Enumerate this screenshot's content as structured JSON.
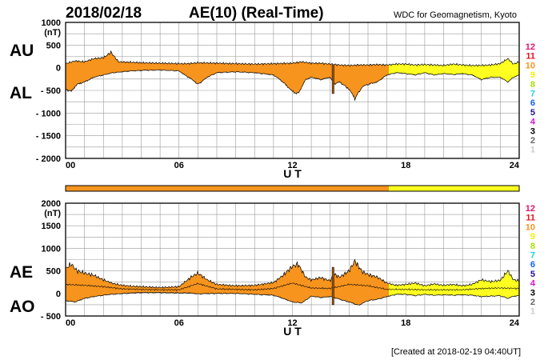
{
  "header": {
    "date": "2018/02/18",
    "title": "AE(10) (Real-Time)",
    "source": "WDC for Geomagnetism, Kyoto"
  },
  "footer": {
    "created": "[Created at 2018-02-19 04:40UT]"
  },
  "colors": {
    "orange": "#f7941d",
    "yellow": "#ffff20",
    "grid": "#999999"
  },
  "legend": {
    "items": [
      {
        "label": "12",
        "color": "#e8106e"
      },
      {
        "label": "11",
        "color": "#e8101e"
      },
      {
        "label": "10",
        "color": "#f7941d"
      },
      {
        "label": "9",
        "color": "#f0f000"
      },
      {
        "label": "8",
        "color": "#a8e000"
      },
      {
        "label": "7",
        "color": "#20d0e0"
      },
      {
        "label": "6",
        "color": "#1060ff"
      },
      {
        "label": "5",
        "color": "#2010a0"
      },
      {
        "label": "4",
        "color": "#e010e0"
      },
      {
        "label": "3",
        "color": "#000000"
      },
      {
        "label": "2",
        "color": "#666666"
      },
      {
        "label": "1",
        "color": "#cccccc"
      }
    ]
  },
  "chart_data": [
    {
      "type": "area",
      "id": "au-al",
      "unit": "(nT)",
      "label_top": "AU",
      "label_bottom": "AL",
      "xlabel": "U T",
      "xlim": [
        0,
        24
      ],
      "ylim": [
        -2000,
        1000
      ],
      "yticks": [
        1000,
        500,
        0,
        -500,
        -1000,
        -1500,
        -2000
      ],
      "ytick_labels": [
        "1000",
        "500",
        "0",
        "- 500",
        "- 1000",
        "- 1500",
        "- 2000"
      ],
      "xticks": [
        0,
        6,
        12,
        18,
        24
      ],
      "xtick_labels": [
        "00",
        "06",
        "12",
        "18",
        "24"
      ],
      "station_change_hour": 17.1,
      "series": [
        {
          "key": "upper",
          "x": [
            0,
            0.5,
            1,
            1.5,
            2,
            2.4,
            2.8,
            3.5,
            4,
            5,
            6,
            6.5,
            7,
            8,
            9,
            10,
            11,
            12,
            12.5,
            13,
            13.5,
            14,
            14.5,
            15,
            15.5,
            16,
            16.5,
            17,
            17.5,
            18,
            18.5,
            19,
            19.5,
            20,
            20.5,
            21,
            21.5,
            22,
            22.5,
            23,
            23.4,
            23.7,
            24
          ],
          "y": [
            90,
            150,
            130,
            200,
            220,
            340,
            130,
            120,
            110,
            100,
            90,
            90,
            110,
            100,
            90,
            80,
            90,
            100,
            130,
            100,
            100,
            80,
            60,
            50,
            60,
            60,
            70,
            60,
            80,
            80,
            60,
            70,
            60,
            50,
            80,
            60,
            50,
            50,
            60,
            90,
            200,
            80,
            130
          ]
        },
        {
          "key": "lower",
          "x": [
            0,
            0.3,
            0.6,
            1,
            1.5,
            2,
            2.5,
            3,
            3.5,
            4,
            5,
            6,
            6.3,
            6.7,
            7,
            7.5,
            8,
            9,
            10,
            11,
            11.5,
            12,
            12.3,
            12.7,
            13,
            13.5,
            14,
            14.2,
            14.5,
            15,
            15.3,
            15.7,
            16,
            16.5,
            17,
            17.5,
            18,
            18.5,
            19,
            19.5,
            20,
            20.5,
            21,
            21.5,
            22,
            22.5,
            23,
            23.4,
            23.7,
            24
          ],
          "y": [
            -450,
            -500,
            -350,
            -300,
            -200,
            -150,
            -100,
            -80,
            -60,
            -50,
            -40,
            -60,
            -150,
            -250,
            -350,
            -200,
            -100,
            -80,
            -100,
            -150,
            -300,
            -500,
            -550,
            -250,
            -200,
            -250,
            -200,
            -350,
            -300,
            -450,
            -650,
            -400,
            -350,
            -300,
            -150,
            -100,
            -120,
            -150,
            -100,
            -150,
            -120,
            -140,
            -120,
            -150,
            -250,
            -200,
            -200,
            -300,
            -200,
            -150
          ]
        }
      ],
      "spike": {
        "x": 14.15,
        "y": [
          50,
          -570
        ]
      }
    },
    {
      "type": "area",
      "id": "ae-ao",
      "unit": "(nT)",
      "label_top": "AE",
      "label_bottom": "AO",
      "xlabel": "U T",
      "xlim": [
        0,
        24
      ],
      "ylim": [
        -500,
        2000
      ],
      "yticks": [
        2000,
        1500,
        1000,
        500,
        0,
        -500
      ],
      "ytick_labels": [
        "2000",
        "1500",
        "1000",
        "500",
        "0",
        "- 500"
      ],
      "xticks": [
        0,
        6,
        12,
        18,
        24
      ],
      "xtick_labels": [
        "00",
        "06",
        "12",
        "18",
        "24"
      ],
      "station_change_hour": 17.1,
      "series": [
        {
          "key": "upper",
          "x": [
            0,
            0.3,
            0.6,
            1,
            1.5,
            2,
            2.5,
            3,
            3.5,
            4,
            5,
            6,
            6.3,
            6.7,
            7,
            7.5,
            8,
            9,
            10,
            11,
            11.5,
            12,
            12.3,
            12.7,
            13,
            13.5,
            14,
            14.2,
            14.5,
            15,
            15.3,
            15.7,
            16,
            16.5,
            17,
            17.5,
            18,
            18.5,
            19,
            19.5,
            20,
            20.5,
            21,
            21.5,
            22,
            22.5,
            23,
            23.4,
            23.7,
            24
          ],
          "y": [
            550,
            650,
            500,
            450,
            400,
            300,
            220,
            180,
            160,
            150,
            130,
            150,
            250,
            380,
            450,
            300,
            200,
            170,
            180,
            240,
            400,
            600,
            650,
            360,
            300,
            350,
            280,
            430,
            360,
            500,
            720,
            480,
            420,
            360,
            230,
            180,
            200,
            230,
            170,
            210,
            180,
            200,
            170,
            200,
            300,
            260,
            290,
            500,
            300,
            280
          ]
        },
        {
          "key": "lower",
          "x": [
            0,
            0.5,
            1,
            1.5,
            2,
            2.4,
            2.8,
            3.5,
            4,
            5,
            6,
            6.5,
            7,
            8,
            9,
            10,
            11,
            11.5,
            12,
            12.5,
            13,
            13.5,
            14,
            14.5,
            15,
            15.5,
            16,
            16.5,
            17,
            17.5,
            18,
            18.5,
            19,
            19.5,
            20,
            20.5,
            21,
            21.5,
            22,
            22.5,
            23,
            23.4,
            23.7,
            24
          ],
          "y": [
            -150,
            -180,
            -100,
            -60,
            -30,
            -10,
            0,
            20,
            30,
            30,
            20,
            20,
            0,
            10,
            10,
            -10,
            -30,
            -100,
            -180,
            -200,
            -50,
            -80,
            -60,
            -120,
            -180,
            -250,
            -150,
            -120,
            -60,
            -10,
            -10,
            -40,
            -10,
            -30,
            -20,
            -30,
            -20,
            -30,
            -60,
            -50,
            -40,
            -100,
            -50,
            -40
          ]
        },
        {
          "key": "mean",
          "x": [
            0,
            1,
            2,
            3,
            4,
            5,
            6,
            7,
            8,
            9,
            10,
            11,
            12,
            13,
            14,
            15,
            16,
            17,
            18,
            19,
            20,
            21,
            22,
            23,
            24
          ],
          "y": [
            200,
            180,
            150,
            100,
            90,
            80,
            80,
            220,
            100,
            90,
            80,
            110,
            230,
            120,
            110,
            200,
            170,
            90,
            90,
            80,
            80,
            80,
            110,
            120,
            110
          ]
        }
      ],
      "spike": {
        "x": 14.15,
        "y": [
          580,
          -250
        ]
      }
    }
  ]
}
